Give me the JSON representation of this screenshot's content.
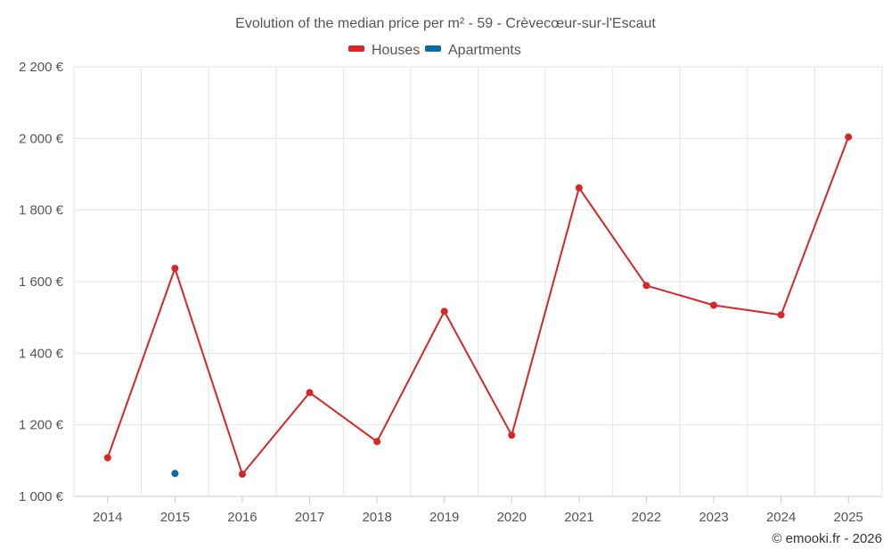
{
  "chart_data": {
    "type": "line",
    "title": "Evolution of the median price per m² - 59 - Crèvecœur-sur-l'Escaut",
    "categories": [
      "2014",
      "2015",
      "2016",
      "2017",
      "2018",
      "2019",
      "2020",
      "2021",
      "2022",
      "2023",
      "2024",
      "2025"
    ],
    "series": [
      {
        "name": "Houses",
        "color": "#d62728",
        "values": [
          1108,
          1637,
          1062,
          1290,
          1153,
          1517,
          1171,
          1862,
          1589,
          1534,
          1507,
          2004
        ]
      },
      {
        "name": "Apartments",
        "color": "#0a6aa1",
        "values": [
          null,
          1064,
          null,
          null,
          null,
          null,
          null,
          null,
          null,
          null,
          null,
          null
        ]
      }
    ],
    "ylim": [
      1000,
      2200
    ],
    "yticks": [
      1000,
      1200,
      1400,
      1600,
      1800,
      2000,
      2200
    ],
    "ytick_labels": [
      "1 000 €",
      "1 200 €",
      "1 400 €",
      "1 600 €",
      "1 800 €",
      "2 000 €",
      "2 200 €"
    ],
    "xlabel": "",
    "ylabel": "",
    "grid": true,
    "legend_position": "top-center"
  },
  "credits": "© emooki.fr - 2026"
}
